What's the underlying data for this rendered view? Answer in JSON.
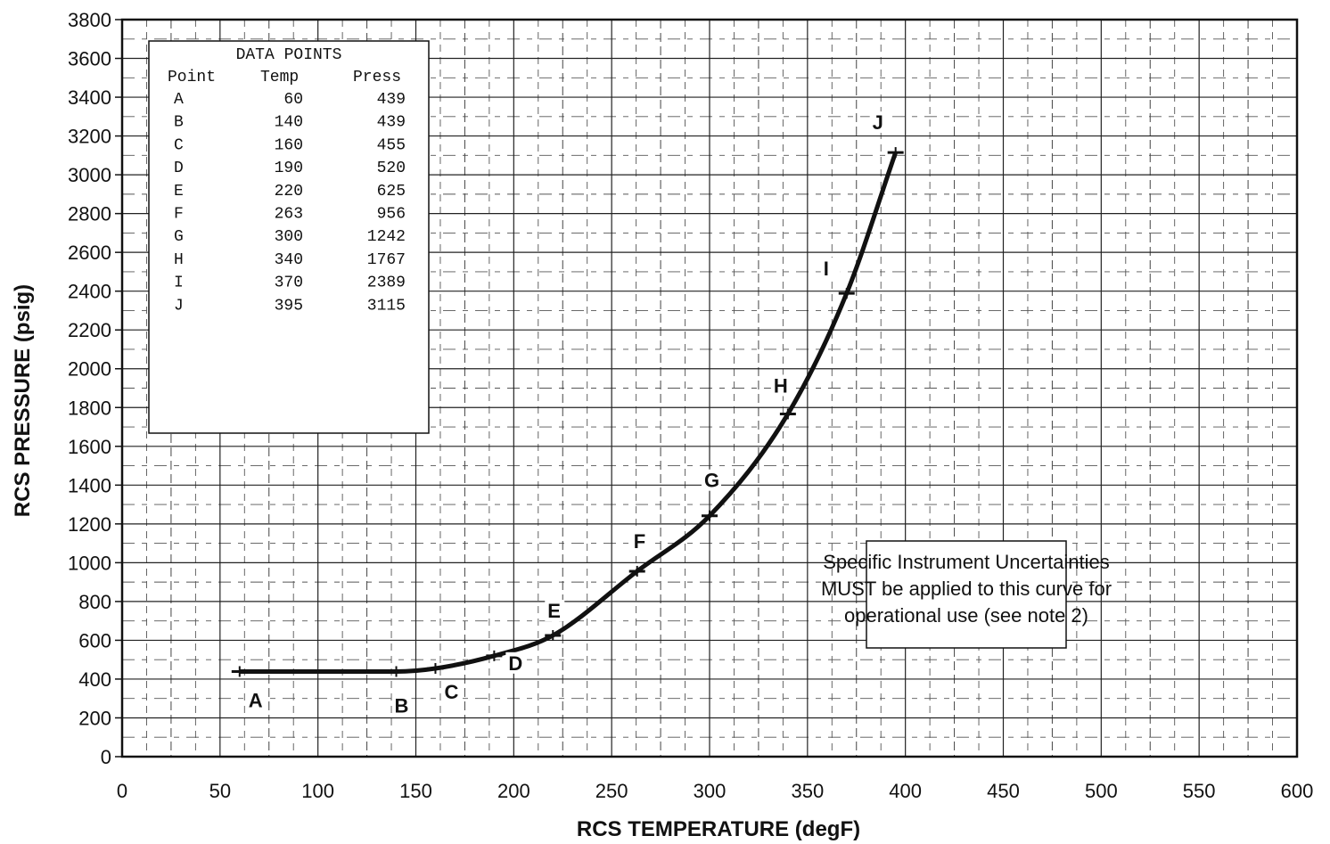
{
  "chart_data": {
    "type": "line",
    "xlabel": "RCS TEMPERATURE (degF)",
    "ylabel": "RCS PRESSURE (psig)",
    "xlim": [
      0,
      600
    ],
    "ylim": [
      0,
      3800
    ],
    "xticks": [
      0,
      50,
      100,
      150,
      200,
      250,
      300,
      350,
      400,
      450,
      500,
      550,
      600
    ],
    "yticks": [
      0,
      200,
      400,
      600,
      800,
      1000,
      1200,
      1400,
      1600,
      1800,
      2000,
      2200,
      2400,
      2600,
      2800,
      3000,
      3200,
      3400,
      3600,
      3800
    ],
    "grid": true,
    "series": [
      {
        "points": [
          {
            "label": "A",
            "x": 60,
            "y": 439
          },
          {
            "label": "B",
            "x": 140,
            "y": 439
          },
          {
            "label": "C",
            "x": 160,
            "y": 455
          },
          {
            "label": "D",
            "x": 190,
            "y": 520
          },
          {
            "label": "E",
            "x": 220,
            "y": 625
          },
          {
            "label": "F",
            "x": 263,
            "y": 956
          },
          {
            "label": "G",
            "x": 300,
            "y": 1242
          },
          {
            "label": "H",
            "x": 340,
            "y": 1767
          },
          {
            "label": "I",
            "x": 370,
            "y": 2389
          },
          {
            "label": "J",
            "x": 395,
            "y": 3115
          }
        ]
      }
    ],
    "data_table": {
      "title": "DATA POINTS",
      "headers": [
        "Point",
        "Temp",
        "Press"
      ],
      "rows": [
        [
          "A",
          "60",
          "439"
        ],
        [
          "B",
          "140",
          "439"
        ],
        [
          "C",
          "160",
          "455"
        ],
        [
          "D",
          "190",
          "520"
        ],
        [
          "E",
          "220",
          "625"
        ],
        [
          "F",
          "263",
          "956"
        ],
        [
          "G",
          "300",
          "1242"
        ],
        [
          "H",
          "340",
          "1767"
        ],
        [
          "I",
          "370",
          "2389"
        ],
        [
          "J",
          "395",
          "3115"
        ]
      ]
    },
    "note": {
      "lines": [
        "Specific Instrument Uncertainties",
        "MUST be applied to this curve for",
        "operational use (see note 2)"
      ]
    }
  }
}
